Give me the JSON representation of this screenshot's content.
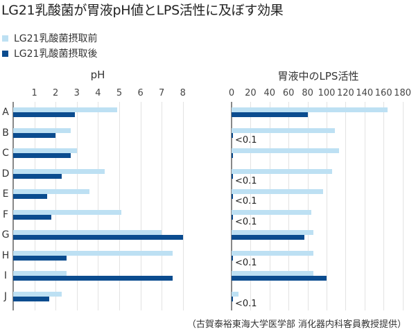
{
  "title": "LG21乳酸菌が胃液pH値とLPS活性に及ぼす効果",
  "legend": [
    {
      "label": "LG21乳酸菌摂取前",
      "color": "#bde0f3"
    },
    {
      "label": "LG21乳酸菌摂取後",
      "color": "#0b4c8f"
    }
  ],
  "footer": "（古賀泰裕東海大学医学部 消化器内科客員教授提供）",
  "colors": {
    "before": "#bde0f3",
    "after": "#0b4c8f",
    "grid": "#e2e2e2",
    "axis": "#888888"
  },
  "chart_data": [
    {
      "type": "bar",
      "orientation": "horizontal",
      "title": "pH",
      "xlabel": "",
      "ylabel": "",
      "xlim": [
        0,
        8
      ],
      "xticks": [
        "1",
        "2",
        "3",
        "4",
        "5",
        "6",
        "7",
        "8"
      ],
      "grid": true,
      "legend_position": "top-left",
      "categories": [
        "A",
        "B",
        "C",
        "D",
        "E",
        "F",
        "G",
        "H",
        "I",
        "J"
      ],
      "series": [
        {
          "name": "LG21乳酸菌摂取前",
          "values": [
            4.9,
            2.7,
            3.0,
            4.3,
            3.6,
            5.1,
            7.0,
            7.5,
            2.5,
            2.3
          ]
        },
        {
          "name": "LG21乳酸菌摂取後",
          "values": [
            2.9,
            2.0,
            2.7,
            2.3,
            1.6,
            1.8,
            8.0,
            2.5,
            7.5,
            1.7
          ]
        }
      ]
    },
    {
      "type": "bar",
      "orientation": "horizontal",
      "title": "胃液中のLPS活性",
      "xlabel": "",
      "ylabel": "",
      "xlim": [
        0,
        180
      ],
      "xticks": [
        "0",
        "20",
        "40",
        "60",
        "80",
        "100",
        "120",
        "140",
        "160",
        "180"
      ],
      "grid": true,
      "categories": [
        "A",
        "B",
        "C",
        "D",
        "E",
        "F",
        "G",
        "H",
        "I",
        "J"
      ],
      "series": [
        {
          "name": "LG21乳酸菌摂取前",
          "values": [
            164,
            109,
            113,
            106,
            96,
            84,
            86,
            86,
            86,
            7
          ]
        },
        {
          "name": "LG21乳酸菌摂取後",
          "values": [
            80,
            0.1,
            0.5,
            0.1,
            0.1,
            0.1,
            77,
            0.1,
            100,
            0.1
          ]
        }
      ],
      "annotations": [
        {
          "category": "B",
          "text": "<0.1"
        },
        {
          "category": "D",
          "text": "<0.1"
        },
        {
          "category": "E",
          "text": "<0.1"
        },
        {
          "category": "F",
          "text": "<0.1"
        },
        {
          "category": "H",
          "text": "<0.1"
        },
        {
          "category": "J",
          "text": "<0.1"
        }
      ]
    }
  ]
}
